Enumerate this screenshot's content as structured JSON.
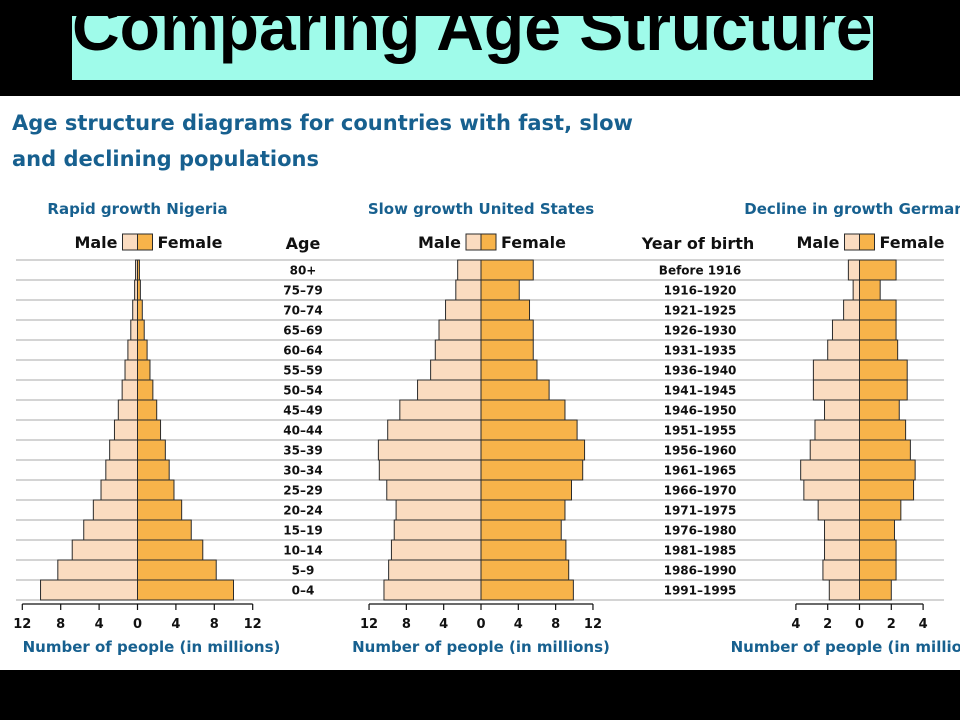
{
  "slide_title": "Comparing Age Structures",
  "chart_data": {
    "type": "bar",
    "title": "Age structure diagrams for countries with fast, slow and declining populations",
    "colors": {
      "male": "#fbdcc0",
      "female": "#f7b34a",
      "outline": "#2b2b2b",
      "heading": "#17608f",
      "grid": "#a9a9a9"
    },
    "age_column_header": "Age",
    "age_groups": [
      "80+",
      "75–79",
      "70–74",
      "65–69",
      "60–64",
      "55–59",
      "50–54",
      "45–49",
      "40–44",
      "35–39",
      "30–34",
      "25–29",
      "20–24",
      "15–19",
      "10–14",
      "5–9",
      "0–4"
    ],
    "birth_year_column_header": "Year of birth",
    "birth_years": [
      "Before 1916",
      "1916–1920",
      "1921–1925",
      "1926–1930",
      "1931–1935",
      "1936–1940",
      "1941–1945",
      "1946–1950",
      "1951–1955",
      "1956–1960",
      "1961–1965",
      "1966–1970",
      "1971–1975",
      "1976–1980",
      "1981–1985",
      "1986–1990",
      "1991–1995"
    ],
    "legend": {
      "male": "Male",
      "female": "Female"
    },
    "charts": [
      {
        "title": "Rapid growth Nigeria",
        "xlabel": "Number of people (in millions)",
        "xlim": [
          -12,
          12
        ],
        "ticks": [
          -12,
          -8,
          -4,
          0,
          4,
          8,
          12
        ],
        "tick_labels": [
          "12",
          "8",
          "4",
          "0",
          "4",
          "8",
          "12"
        ],
        "series": [
          {
            "name": "Male",
            "values": [
              0.2,
              0.3,
              0.5,
              0.7,
              1.0,
              1.3,
              1.6,
              2.0,
              2.4,
              2.9,
              3.3,
              3.8,
              4.6,
              5.6,
              6.8,
              8.3,
              10.1
            ]
          },
          {
            "name": "Female",
            "values": [
              0.2,
              0.3,
              0.5,
              0.7,
              1.0,
              1.3,
              1.6,
              2.0,
              2.4,
              2.9,
              3.3,
              3.8,
              4.6,
              5.6,
              6.8,
              8.2,
              10.0
            ]
          }
        ]
      },
      {
        "title": "Slow growth United States",
        "xlabel": "Number of people (in millions)",
        "xlim": [
          -12,
          12
        ],
        "ticks": [
          -12,
          -8,
          -4,
          0,
          4,
          8,
          12
        ],
        "tick_labels": [
          "12",
          "8",
          "4",
          "0",
          "4",
          "8",
          "12"
        ],
        "series": [
          {
            "name": "Male",
            "values": [
              2.5,
              2.7,
              3.8,
              4.5,
              4.9,
              5.4,
              6.8,
              8.7,
              10.0,
              11.0,
              10.9,
              10.1,
              9.1,
              9.3,
              9.6,
              9.9,
              10.4
            ]
          },
          {
            "name": "Female",
            "values": [
              5.6,
              4.1,
              5.2,
              5.6,
              5.6,
              6.0,
              7.3,
              9.0,
              10.3,
              11.1,
              10.9,
              9.7,
              9.0,
              8.6,
              9.1,
              9.4,
              9.9
            ]
          }
        ]
      },
      {
        "title": "Decline in growth Germany",
        "xlabel": "Number of people (in millions)",
        "xlim": [
          -4,
          4
        ],
        "ticks": [
          -4,
          -2,
          0,
          2,
          4
        ],
        "tick_labels": [
          "4",
          "2",
          "0",
          "2",
          "4"
        ],
        "series": [
          {
            "name": "Male",
            "values": [
              0.7,
              0.4,
              1.0,
              1.7,
              2.0,
              2.9,
              2.9,
              2.2,
              2.8,
              3.1,
              3.7,
              3.5,
              2.6,
              2.2,
              2.2,
              2.3,
              1.9
            ]
          },
          {
            "name": "Female",
            "values": [
              2.3,
              1.3,
              2.3,
              2.3,
              2.4,
              3.0,
              3.0,
              2.5,
              2.9,
              3.2,
              3.5,
              3.4,
              2.6,
              2.2,
              2.3,
              2.3,
              2.0
            ]
          }
        ]
      }
    ]
  }
}
